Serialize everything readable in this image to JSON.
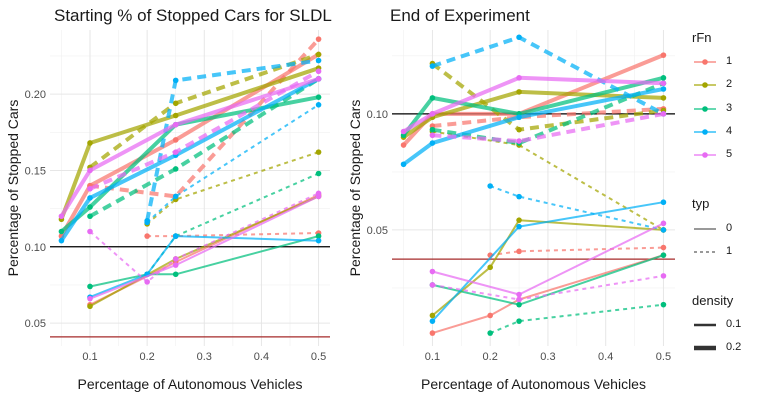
{
  "chart_data": [
    {
      "type": "line",
      "title": "Starting % of Stopped Cars for SLDL",
      "xlabel": "Percentage of Autonomous Vehicles",
      "ylabel": "Percentage of Stopped Cars",
      "xlim": [
        0.03,
        0.52
      ],
      "ylim": [
        0.035,
        0.242
      ],
      "xticks": [
        "0.1",
        "0.2",
        "0.3",
        "0.4",
        "0.5"
      ],
      "xtick_values": [
        0.1,
        0.2,
        0.3,
        0.4,
        0.5
      ],
      "yticks": [
        "0.05",
        "0.10",
        "0.15",
        "0.20"
      ],
      "ytick_values": [
        0.05,
        0.1,
        0.15,
        0.2
      ],
      "hlines": [
        {
          "y": 0.1,
          "color": "#000000"
        },
        {
          "y": 0.041,
          "color": "#a52a2a"
        }
      ],
      "series": [
        {
          "rFn": "1",
          "typ": "0",
          "density": "0.2",
          "x": [
            0.05,
            0.1,
            0.25,
            0.5
          ],
          "y": [
            0.107,
            0.14,
            0.17,
            0.226
          ]
        },
        {
          "rFn": "1",
          "typ": "0",
          "density": "0.1",
          "x": [
            0.1,
            0.25,
            0.5
          ],
          "y": [
            0.062,
            0.09,
            0.134
          ]
        },
        {
          "rFn": "1",
          "typ": "1",
          "density": "0.2",
          "x": [
            0.1,
            0.25,
            0.5
          ],
          "y": [
            0.14,
            0.133,
            0.236
          ]
        },
        {
          "rFn": "1",
          "typ": "1",
          "density": "0.1",
          "x": [
            0.2,
            0.25,
            0.5
          ],
          "y": [
            0.107,
            0.107,
            0.109
          ]
        },
        {
          "rFn": "2",
          "typ": "0",
          "density": "0.2",
          "x": [
            0.05,
            0.1,
            0.25,
            0.5
          ],
          "y": [
            0.118,
            0.168,
            0.186,
            0.217
          ]
        },
        {
          "rFn": "2",
          "typ": "0",
          "density": "0.1",
          "x": [
            0.1,
            0.25,
            0.5
          ],
          "y": [
            0.061,
            0.092,
            0.133
          ]
        },
        {
          "rFn": "2",
          "typ": "1",
          "density": "0.2",
          "x": [
            0.1,
            0.25,
            0.5
          ],
          "y": [
            0.152,
            0.194,
            0.226
          ]
        },
        {
          "rFn": "2",
          "typ": "1",
          "density": "0.1",
          "x": [
            0.2,
            0.25,
            0.5
          ],
          "y": [
            0.115,
            0.131,
            0.162
          ]
        },
        {
          "rFn": "3",
          "typ": "0",
          "density": "0.2",
          "x": [
            0.05,
            0.1,
            0.25,
            0.5
          ],
          "y": [
            0.11,
            0.126,
            0.18,
            0.198
          ]
        },
        {
          "rFn": "3",
          "typ": "0",
          "density": "0.1",
          "x": [
            0.1,
            0.2,
            0.25,
            0.5
          ],
          "y": [
            0.074,
            0.082,
            0.082,
            0.107
          ]
        },
        {
          "rFn": "3",
          "typ": "1",
          "density": "0.2",
          "x": [
            0.1,
            0.25,
            0.5
          ],
          "y": [
            0.12,
            0.151,
            0.21
          ]
        },
        {
          "rFn": "3",
          "typ": "1",
          "density": "0.1",
          "x": [
            0.2,
            0.25,
            0.5
          ],
          "y": [
            0.082,
            0.107,
            0.148
          ]
        },
        {
          "rFn": "4",
          "typ": "0",
          "density": "0.2",
          "x": [
            0.05,
            0.1,
            0.25,
            0.5
          ],
          "y": [
            0.104,
            0.132,
            0.16,
            0.21
          ]
        },
        {
          "rFn": "4",
          "typ": "0",
          "density": "0.1",
          "x": [
            0.1,
            0.2,
            0.25,
            0.5
          ],
          "y": [
            0.067,
            0.082,
            0.107,
            0.104
          ]
        },
        {
          "rFn": "4",
          "typ": "1",
          "density": "0.2",
          "x": [
            0.2,
            0.25,
            0.5
          ],
          "y": [
            0.117,
            0.209,
            0.222
          ]
        },
        {
          "rFn": "4",
          "typ": "1",
          "density": "0.1",
          "x": [
            0.2,
            0.25,
            0.5
          ],
          "y": [
            0.116,
            0.133,
            0.193
          ]
        },
        {
          "rFn": "5",
          "typ": "0",
          "density": "0.2",
          "x": [
            0.05,
            0.1,
            0.25,
            0.5
          ],
          "y": [
            0.12,
            0.15,
            0.18,
            0.21
          ]
        },
        {
          "rFn": "5",
          "typ": "0",
          "density": "0.1",
          "x": [
            0.1,
            0.25,
            0.5
          ],
          "y": [
            0.066,
            0.088,
            0.133
          ]
        },
        {
          "rFn": "5",
          "typ": "1",
          "density": "0.2",
          "x": [
            0.1,
            0.25,
            0.5
          ],
          "y": [
            0.138,
            0.162,
            0.215
          ]
        },
        {
          "rFn": "5",
          "typ": "1",
          "density": "0.1",
          "x": [
            0.1,
            0.2,
            0.25,
            0.5
          ],
          "y": [
            0.11,
            0.077,
            0.092,
            0.135
          ]
        }
      ]
    },
    {
      "type": "line",
      "title": "End of Experiment",
      "xlabel": "Percentage of Autonomous Vehicles",
      "ylabel": "Percentage of Stopped Cars",
      "log_y": true,
      "xlim": [
        0.03,
        0.52
      ],
      "ylim": [
        0.025,
        0.165
      ],
      "xticks": [
        "0.1",
        "0.2",
        "0.3",
        "0.4",
        "0.5"
      ],
      "xtick_values": [
        0.1,
        0.2,
        0.3,
        0.4,
        0.5
      ],
      "yticks": [
        "0.05",
        "0.10"
      ],
      "ytick_values": [
        0.05,
        0.1
      ],
      "hlines": [
        {
          "y": 0.1,
          "color": "#000000"
        },
        {
          "y": 0.042,
          "color": "#a52a2a"
        }
      ],
      "series": [
        {
          "rFn": "1",
          "typ": "0",
          "density": "0.2",
          "x": [
            0.05,
            0.1,
            0.25,
            0.5
          ],
          "y": [
            0.083,
            0.1,
            0.1,
            0.142
          ]
        },
        {
          "rFn": "1",
          "typ": "0",
          "density": "0.1",
          "x": [
            0.1,
            0.2,
            0.25,
            0.5
          ],
          "y": [
            0.027,
            0.03,
            0.033,
            0.043
          ]
        },
        {
          "rFn": "1",
          "typ": "1",
          "density": "0.2",
          "x": [
            0.1,
            0.25,
            0.5
          ],
          "y": [
            0.093,
            0.098,
            0.103
          ]
        },
        {
          "rFn": "1",
          "typ": "1",
          "density": "0.1",
          "x": [
            0.2,
            0.25,
            0.5
          ],
          "y": [
            0.043,
            0.044,
            0.045
          ]
        },
        {
          "rFn": "2",
          "typ": "0",
          "density": "0.2",
          "x": [
            0.05,
            0.1,
            0.25,
            0.5
          ],
          "y": [
            0.087,
            0.098,
            0.114,
            0.11
          ]
        },
        {
          "rFn": "2",
          "typ": "0",
          "density": "0.1",
          "x": [
            0.1,
            0.2,
            0.25,
            0.5
          ],
          "y": [
            0.03,
            0.04,
            0.053,
            0.05
          ]
        },
        {
          "rFn": "2",
          "typ": "1",
          "density": "0.2",
          "x": [
            0.1,
            0.25,
            0.5
          ],
          "y": [
            0.135,
            0.091,
            0.102
          ]
        },
        {
          "rFn": "2",
          "typ": "1",
          "density": "0.1",
          "x": [
            0.1,
            0.25,
            0.5
          ],
          "y": [
            0.09,
            0.083,
            0.05
          ]
        },
        {
          "rFn": "3",
          "typ": "0",
          "density": "0.2",
          "x": [
            0.05,
            0.1,
            0.25,
            0.5
          ],
          "y": [
            0.088,
            0.11,
            0.1,
            0.124
          ]
        },
        {
          "rFn": "3",
          "typ": "0",
          "density": "0.1",
          "x": [
            0.1,
            0.25,
            0.5
          ],
          "y": [
            0.036,
            0.032,
            0.043
          ]
        },
        {
          "rFn": "3",
          "typ": "1",
          "density": "0.2",
          "x": [
            0.1,
            0.25,
            0.5
          ],
          "y": [
            0.091,
            0.084,
            0.12
          ]
        },
        {
          "rFn": "3",
          "typ": "1",
          "density": "0.1",
          "x": [
            0.2,
            0.25,
            0.5
          ],
          "y": [
            0.027,
            0.029,
            0.032
          ]
        },
        {
          "rFn": "4",
          "typ": "0",
          "density": "0.2",
          "x": [
            0.05,
            0.1,
            0.25,
            0.5
          ],
          "y": [
            0.074,
            0.084,
            0.098,
            0.116
          ]
        },
        {
          "rFn": "4",
          "typ": "0",
          "density": "0.1",
          "x": [
            0.1,
            0.25,
            0.5
          ],
          "y": [
            0.029,
            0.051,
            0.059
          ]
        },
        {
          "rFn": "4",
          "typ": "1",
          "density": "0.2",
          "x": [
            0.1,
            0.25,
            0.5
          ],
          "y": [
            0.133,
            0.158,
            0.1
          ]
        },
        {
          "rFn": "4",
          "typ": "1",
          "density": "0.1",
          "x": [
            0.2,
            0.25,
            0.5
          ],
          "y": [
            0.065,
            0.061,
            0.05
          ]
        },
        {
          "rFn": "5",
          "typ": "0",
          "density": "0.2",
          "x": [
            0.05,
            0.1,
            0.25,
            0.5
          ],
          "y": [
            0.09,
            0.1,
            0.124,
            0.12
          ]
        },
        {
          "rFn": "5",
          "typ": "0",
          "density": "0.1",
          "x": [
            0.1,
            0.25,
            0.5
          ],
          "y": [
            0.039,
            0.034,
            0.052
          ]
        },
        {
          "rFn": "5",
          "typ": "1",
          "density": "0.2",
          "x": [
            0.1,
            0.25,
            0.5
          ],
          "y": [
            0.088,
            0.085,
            0.1
          ]
        },
        {
          "rFn": "5",
          "typ": "1",
          "density": "0.1",
          "x": [
            0.1,
            0.25,
            0.5
          ],
          "y": [
            0.036,
            0.033,
            0.038
          ]
        }
      ]
    }
  ],
  "legend": {
    "rfn_title": "rFn",
    "rfn_items": [
      {
        "label": "1",
        "color": "#f8766d"
      },
      {
        "label": "2",
        "color": "#a3a500"
      },
      {
        "label": "3",
        "color": "#00bf7d"
      },
      {
        "label": "4",
        "color": "#00b0f6"
      },
      {
        "label": "5",
        "color": "#e76bf3"
      }
    ],
    "typ_title": "typ",
    "typ_items": [
      {
        "label": "0"
      },
      {
        "label": "1"
      }
    ],
    "density_title": "density",
    "density_items": [
      {
        "label": "0.1"
      },
      {
        "label": "0.2"
      }
    ]
  }
}
